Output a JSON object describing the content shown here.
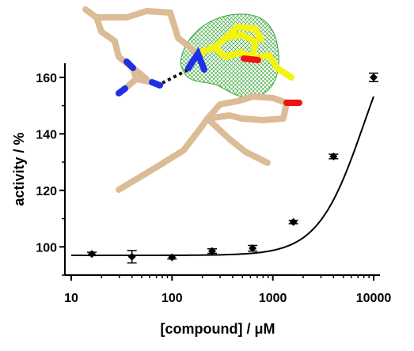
{
  "chart_data": {
    "type": "scatter",
    "xlabel": "[compound] / μM",
    "ylabel": "activity / %",
    "xscale": "log",
    "xlim": [
      10,
      10000
    ],
    "ylim": [
      90,
      165
    ],
    "xticks": [
      10,
      100,
      1000,
      10000
    ],
    "xtick_labels": [
      "10",
      "100",
      "1000",
      "10000"
    ],
    "yticks": [
      100,
      120,
      140,
      160
    ],
    "ytick_labels": [
      "100",
      "120",
      "140",
      "160"
    ],
    "points": [
      {
        "x": 16,
        "y": 97.5,
        "err": 0.6
      },
      {
        "x": 40,
        "y": 96.5,
        "err": 2.2
      },
      {
        "x": 100,
        "y": 96.3,
        "err": 0.6
      },
      {
        "x": 250,
        "y": 98.5,
        "err": 0.8
      },
      {
        "x": 630,
        "y": 99.5,
        "err": 1.0
      },
      {
        "x": 1600,
        "y": 108.8,
        "err": 0.6
      },
      {
        "x": 4000,
        "y": 132,
        "err": 0.8
      },
      {
        "x": 10000,
        "y": 160,
        "err": 1.5
      }
    ],
    "fit": {
      "type": "dose-response",
      "bottom": 97,
      "top": 190,
      "ec50": 8000,
      "hill": 1.9
    },
    "grid": false,
    "legend": "none",
    "marker_color": "#000000",
    "line_color": "#000000"
  },
  "inset": {
    "description_icon": "protein-ligand-structure-icon",
    "colors": {
      "backbone": "#dcbb97",
      "ligand": "#f3f311",
      "nitrogen": "#1f2fe6",
      "oxygen": "#ee1313",
      "density_mesh": "#3aa53a"
    }
  }
}
